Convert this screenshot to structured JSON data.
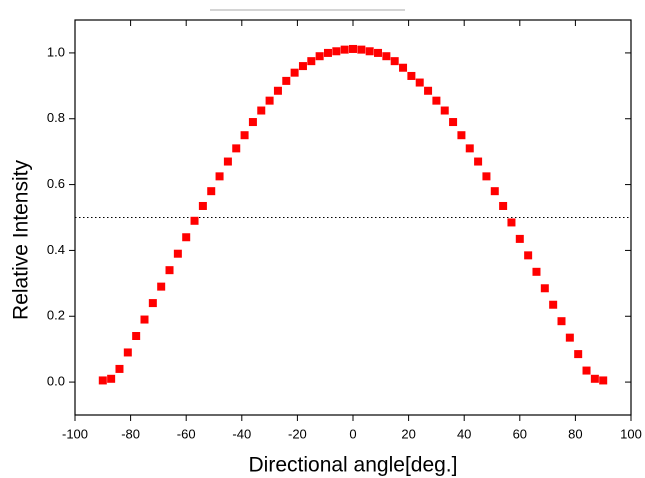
{
  "chart_data": {
    "type": "scatter",
    "xlabel": "Directional angle[deg.]",
    "ylabel": "Relative Intensity",
    "color": "#ff0000",
    "x": [
      -90,
      -87,
      -84,
      -81,
      -78,
      -75,
      -72,
      -69,
      -66,
      -63,
      -60,
      -57,
      -54,
      -51,
      -48,
      -45,
      -42,
      -39,
      -36,
      -33,
      -30,
      -27,
      -24,
      -21,
      -18,
      -15,
      -12,
      -9,
      -6,
      -3,
      0,
      3,
      6,
      9,
      12,
      15,
      18,
      21,
      24,
      27,
      30,
      33,
      36,
      39,
      42,
      45,
      48,
      51,
      54,
      57,
      60,
      63,
      66,
      69,
      72,
      75,
      78,
      81,
      84,
      87,
      90
    ],
    "values": [
      0.005,
      0.01,
      0.04,
      0.09,
      0.14,
      0.19,
      0.24,
      0.29,
      0.34,
      0.39,
      0.44,
      0.49,
      0.535,
      0.58,
      0.625,
      0.67,
      0.71,
      0.75,
      0.79,
      0.825,
      0.855,
      0.885,
      0.915,
      0.94,
      0.96,
      0.975,
      0.99,
      1.0,
      1.005,
      1.01,
      1.012,
      1.01,
      1.005,
      1.0,
      0.99,
      0.975,
      0.955,
      0.93,
      0.91,
      0.885,
      0.855,
      0.825,
      0.79,
      0.75,
      0.71,
      0.67,
      0.625,
      0.58,
      0.535,
      0.485,
      0.435,
      0.385,
      0.335,
      0.285,
      0.235,
      0.185,
      0.135,
      0.085,
      0.035,
      0.01,
      0.005
    ],
    "xlim": [
      -100,
      100
    ],
    "ylim": [
      -0.1,
      1.1
    ],
    "xticks": [
      -100,
      -80,
      -60,
      -40,
      -20,
      0,
      20,
      40,
      60,
      80,
      100
    ],
    "yticks": [
      {
        "value": 0,
        "label": "0.0"
      },
      {
        "value": 0.2,
        "label": "0.2"
      },
      {
        "value": 0.4,
        "label": "0.4"
      },
      {
        "value": 0.6,
        "label": "0.6"
      },
      {
        "value": 0.8,
        "label": "0.8"
      },
      {
        "value": 1,
        "label": "1.0"
      }
    ],
    "hline": 0.5
  }
}
